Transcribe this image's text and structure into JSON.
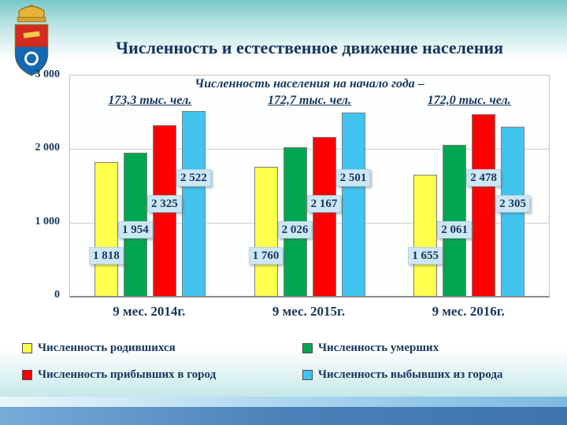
{
  "title": "Численность и естественное движение населения",
  "chart_data": {
    "type": "bar",
    "subtitle": "Численность населения на начало года –",
    "population_start_of_year": [
      "173,3 тыс. чел.",
      "172,7 тыс. чел.",
      "172,0 тыс. чел."
    ],
    "categories": [
      "9 мес. 2014г.",
      "9 мес. 2015г.",
      "9 мес. 2016г."
    ],
    "series": [
      {
        "key": "births",
        "name": "Численность родившихся",
        "color": "#FFFF4D",
        "values": [
          1818,
          1760,
          1655
        ]
      },
      {
        "key": "deaths",
        "name": "Численность умерших",
        "color": "#00A651",
        "values": [
          1954,
          2026,
          2061
        ]
      },
      {
        "key": "arrived",
        "name": "Численность прибывших в город",
        "color": "#FE0000",
        "values": [
          2325,
          2167,
          2478
        ]
      },
      {
        "key": "departed",
        "name": "Численность выбывших из города",
        "color": "#41C5F0",
        "values": [
          2522,
          2501,
          2305
        ]
      }
    ],
    "yticks": [
      {
        "label": "3 000",
        "value": 3000
      },
      {
        "label": "2 000",
        "value": 2000
      },
      {
        "label": "1 000",
        "value": 1000
      },
      {
        "label": "0",
        "value": 0
      }
    ],
    "ylim": [
      0,
      3000
    ],
    "grid": true,
    "legend_position": "bottom",
    "value_label_background": "#CDE7F5",
    "text_color": "#17365D"
  }
}
